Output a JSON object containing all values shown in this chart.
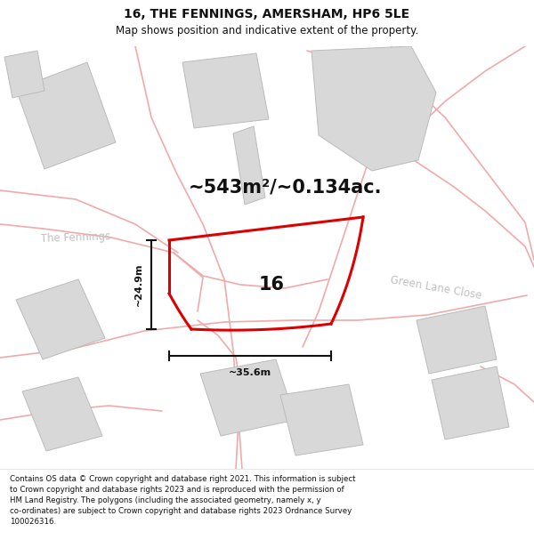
{
  "title": "16, THE FENNINGS, AMERSHAM, HP6 5LE",
  "subtitle": "Map shows position and indicative extent of the property.",
  "footer": "Contains OS data © Crown copyright and database right 2021. This information is subject\nto Crown copyright and database rights 2023 and is reproduced with the permission of\nHM Land Registry. The polygons (including the associated geometry, namely x, y\nco-ordinates) are subject to Crown copyright and database rights 2023 Ordnance Survey\n100026316.",
  "area_text": "~543m²/~0.134ac.",
  "label_16": "16",
  "dim_width": "~35.6m",
  "dim_height": "~24.9m",
  "street_fennings": "The Fennings",
  "street_green": "Green Lane Close",
  "bg_color": "#ffffff",
  "building_fill": "#d8d8d8",
  "building_edge": "#bbbbbb",
  "road_color": "#f0aaaa",
  "plot_color": "#dd0000",
  "dim_color": "#111111",
  "title_fontsize": 10,
  "subtitle_fontsize": 8.5,
  "footer_fontsize": 6.2,
  "area_fontsize": 15,
  "label_fontsize": 15,
  "street_fontsize": 8.5
}
